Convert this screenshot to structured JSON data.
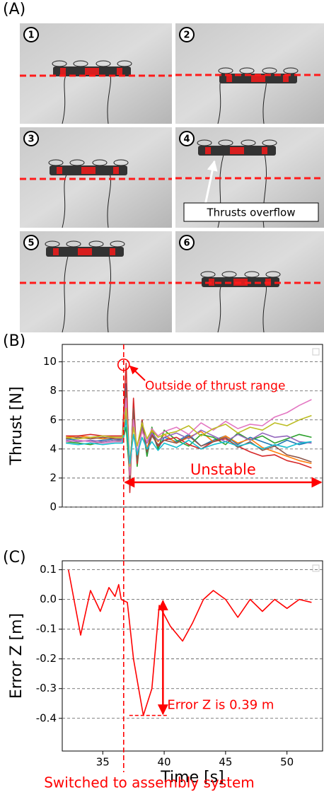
{
  "panel_a": {
    "label": "(A)",
    "photos": [
      "1",
      "2",
      "3",
      "4",
      "5",
      "6"
    ],
    "callout": "Thrusts overflow"
  },
  "chart_data": [
    {
      "type": "line",
      "panel_label": "(B)",
      "ylabel": "Thrust [N]",
      "x": [
        32,
        33,
        34,
        35,
        36,
        36.6,
        36.9,
        37.2,
        37.5,
        37.8,
        38.2,
        38.6,
        39,
        39.5,
        40,
        41,
        42,
        43,
        44,
        45,
        46,
        47,
        48,
        49,
        50,
        51,
        52
      ],
      "xlim": [
        31.7,
        52.9
      ],
      "ylim": [
        0,
        11.2
      ],
      "yticks": [
        0,
        2,
        4,
        6,
        8,
        10
      ],
      "grid": true,
      "switch_x": 36.7,
      "range_note": {
        "label": "Outside of thrust range",
        "x": 36.7,
        "y": 9.8
      },
      "span_note": {
        "label": "Unstable",
        "from": 36.7,
        "to": 52.9
      },
      "series": [
        {
          "color": "#1f77b4",
          "values": [
            4.7,
            4.6,
            4.5,
            4.6,
            4.7,
            4.6,
            8.5,
            2.5,
            6.5,
            3.0,
            5.8,
            3.5,
            5.2,
            4.0,
            4.8,
            4.5,
            5.0,
            4.2,
            4.6,
            4.9,
            4.3,
            4.8,
            4.5,
            4.2,
            4.6,
            4.3,
            4.5
          ]
        },
        {
          "color": "#ff7f0e",
          "values": [
            4.8,
            4.9,
            4.8,
            4.7,
            4.8,
            4.8,
            7.0,
            3.0,
            5.8,
            3.5,
            5.5,
            4.0,
            5.2,
            4.5,
            5.0,
            4.4,
            4.8,
            5.2,
            4.5,
            4.9,
            4.4,
            4.7,
            4.1,
            3.8,
            3.5,
            3.2,
            3.0
          ]
        },
        {
          "color": "#2ca02c",
          "values": [
            4.5,
            4.4,
            4.3,
            4.5,
            4.6,
            4.5,
            5.5,
            2.0,
            7.0,
            2.8,
            6.0,
            3.5,
            5.5,
            4.0,
            5.3,
            4.6,
            4.2,
            5.0,
            4.8,
            4.3,
            5.1,
            4.6,
            4.9,
            4.4,
            4.7,
            5.0,
            4.8
          ]
        },
        {
          "color": "#d62728",
          "values": [
            4.9,
            4.9,
            5.0,
            4.9,
            4.9,
            4.9,
            9.9,
            1.0,
            7.5,
            3.0,
            6.0,
            3.8,
            5.0,
            4.2,
            4.6,
            4.8,
            4.3,
            4.0,
            4.5,
            4.7,
            4.2,
            3.8,
            3.5,
            3.6,
            3.2,
            3.0,
            2.7
          ]
        },
        {
          "color": "#9467bd",
          "values": [
            4.6,
            4.5,
            4.6,
            4.5,
            4.6,
            4.6,
            6.5,
            2.5,
            6.2,
            3.5,
            5.5,
            4.4,
            5.1,
            4.6,
            4.8,
            5.1,
            4.7,
            5.3,
            4.9,
            4.5,
            5.0,
            4.6,
            5.1,
            4.8,
            4.9,
            4.5,
            4.4
          ]
        },
        {
          "color": "#8c564b",
          "values": [
            4.7,
            4.8,
            4.7,
            4.8,
            4.7,
            4.7,
            8.0,
            1.5,
            6.8,
            3.2,
            5.9,
            3.8,
            4.9,
            4.3,
            4.6,
            4.4,
            4.9,
            4.2,
            4.5,
            4.8,
            4.1,
            4.5,
            3.9,
            4.2,
            3.6,
            3.4,
            3.1
          ]
        },
        {
          "color": "#e377c2",
          "values": [
            4.5,
            4.6,
            4.5,
            4.4,
            4.5,
            4.5,
            7.5,
            2.2,
            6.0,
            3.8,
            5.2,
            4.5,
            5.4,
            4.9,
            5.2,
            5.5,
            5.0,
            5.8,
            5.3,
            5.9,
            5.4,
            5.7,
            5.6,
            6.2,
            6.5,
            7.0,
            7.4
          ]
        },
        {
          "color": "#bcbd22",
          "values": [
            4.8,
            4.7,
            4.8,
            4.9,
            4.8,
            4.8,
            6.8,
            2.8,
            5.5,
            4.2,
            5.8,
            4.7,
            5.3,
            4.8,
            5.0,
            5.2,
            5.6,
            4.9,
            5.4,
            5.7,
            5.1,
            5.5,
            5.3,
            5.8,
            5.6,
            6.0,
            6.3
          ]
        },
        {
          "color": "#17becf",
          "values": [
            4.4,
            4.3,
            4.4,
            4.3,
            4.4,
            4.4,
            6.0,
            3.0,
            5.0,
            3.6,
            4.8,
            4.0,
            4.5,
            3.9,
            4.4,
            4.1,
            4.6,
            4.0,
            4.3,
            4.5,
            4.2,
            4.4,
            4.0,
            4.3,
            4.1,
            4.4,
            4.5
          ]
        }
      ]
    },
    {
      "type": "line",
      "panel_label": "(C)",
      "ylabel": "Error Z [m]",
      "xlabel": "Time [s]",
      "x": [
        32.2,
        33.2,
        34,
        34.8,
        35.5,
        36,
        36.3,
        36.5,
        37,
        37.5,
        38.3,
        39,
        39.6,
        40.5,
        41.5,
        42.3,
        43.2,
        44,
        45,
        46,
        47,
        48,
        49,
        50,
        51,
        52
      ],
      "xlim": [
        31.7,
        52.9
      ],
      "ylim": [
        -0.51,
        0.13
      ],
      "xticks": [
        35,
        40,
        45,
        50
      ],
      "yticks": [
        {
          "value": -0.4,
          "label": "-0.4"
        },
        {
          "value": -0.3,
          "label": "-0.3"
        },
        {
          "value": -0.2,
          "label": "-0.2"
        },
        {
          "value": -0.1,
          "label": "-0.1"
        },
        {
          "value": 0,
          "label": "0.0"
        },
        0.1
      ],
      "grid": true,
      "switch_x": 36.7,
      "switch_note": "Switched to assembly system",
      "error_note": {
        "label": "Error Z is 0.39 m",
        "x": 39.9,
        "from": 0,
        "to": -0.39
      },
      "series": [
        {
          "color": "#ff0000",
          "values": [
            0.1,
            -0.12,
            0.03,
            -0.04,
            0.04,
            0.01,
            0.05,
            0.0,
            -0.01,
            -0.2,
            -0.39,
            -0.3,
            -0.02,
            -0.09,
            -0.14,
            -0.08,
            0.0,
            0.03,
            0.0,
            -0.06,
            0.0,
            -0.04,
            0.0,
            -0.03,
            0.0,
            -0.01
          ]
        }
      ]
    }
  ]
}
